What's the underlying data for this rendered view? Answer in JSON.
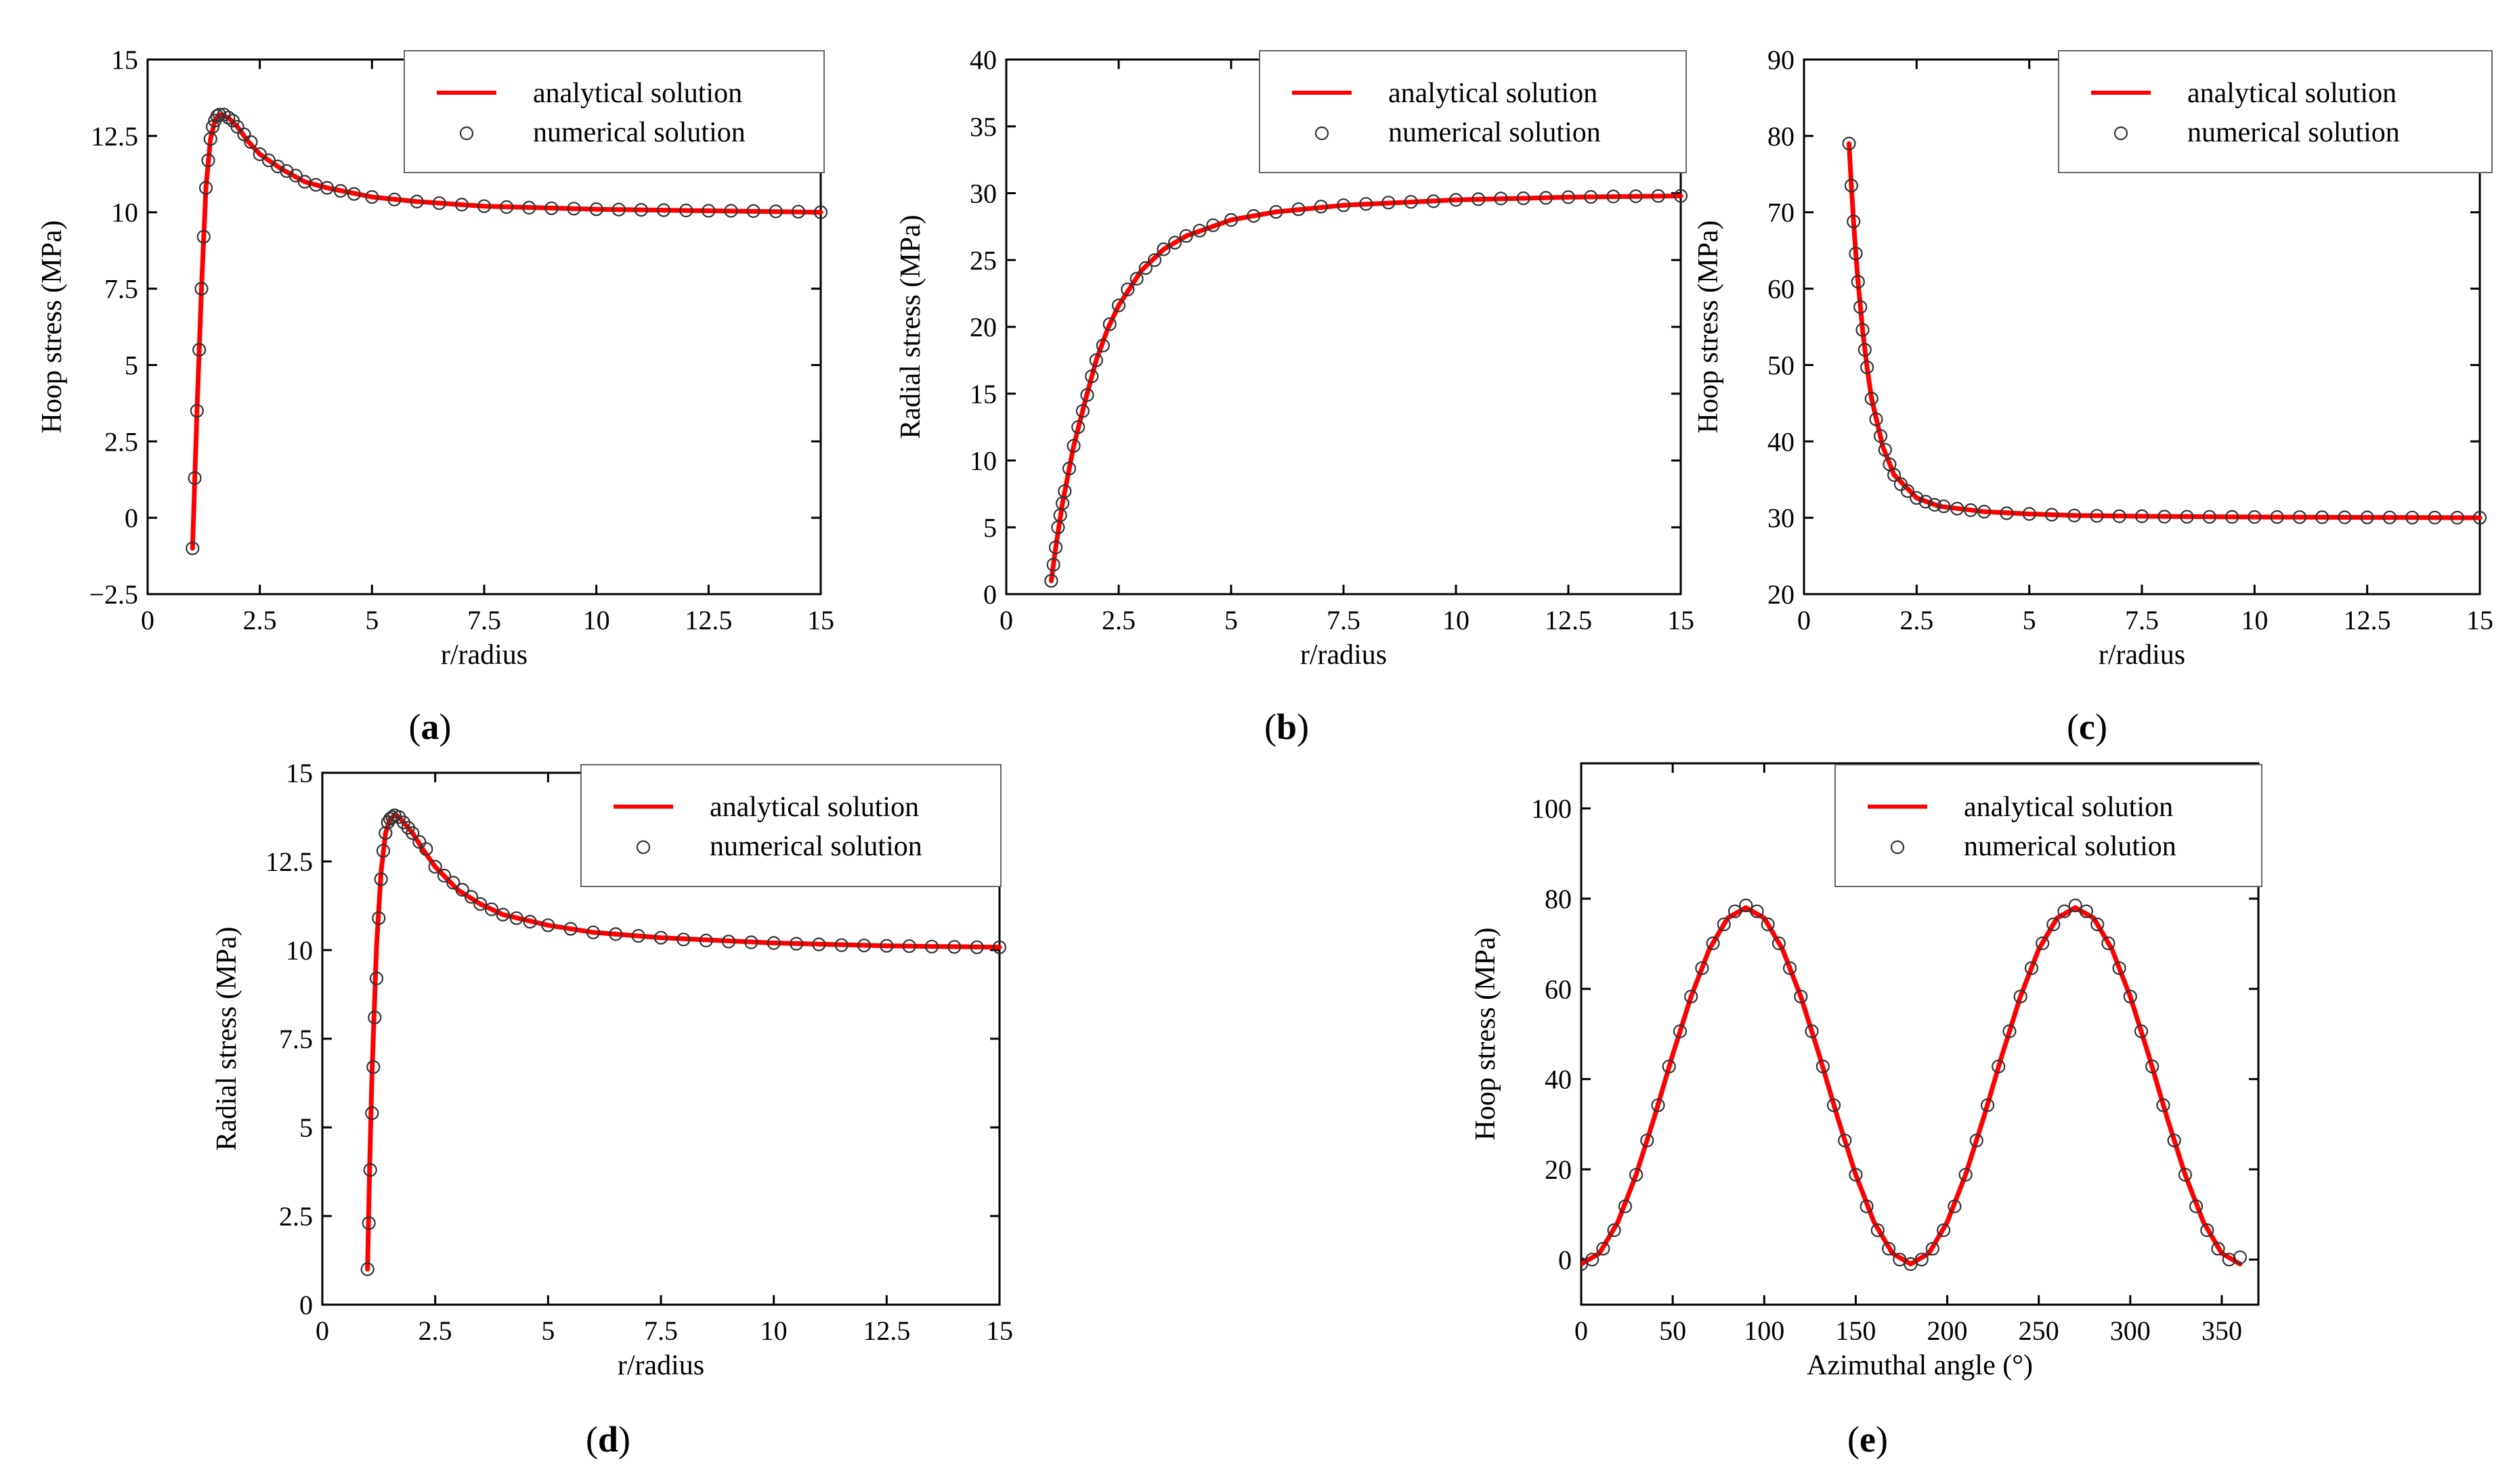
{
  "figure": {
    "panels": [
      "(a)",
      "(b)",
      "(c)",
      "(d)",
      "(e)"
    ]
  },
  "chart_data": [
    {
      "id": "a",
      "panel_label": "(a)",
      "panel_letter": "a",
      "type": "line",
      "xlabel": "r/radius",
      "ylabel": "Hoop stress (MPa)",
      "xlim": [
        0,
        15
      ],
      "ylim": [
        -2.5,
        15
      ],
      "xticks": [
        0,
        2.5,
        5,
        7.5,
        10,
        12.5,
        15
      ],
      "xtick_labels": [
        "0",
        "2.5",
        "5",
        "7.5",
        "10",
        "12.5",
        "15"
      ],
      "yticks": [
        -2.5,
        0,
        2.5,
        5,
        7.5,
        10,
        12.5,
        15
      ],
      "ytick_labels": [
        "−2.5",
        "0",
        "2.5",
        "5",
        "7.5",
        "10",
        "12.5",
        "15"
      ],
      "legend": [
        "analytical solution",
        "numerical solution"
      ],
      "legend_position": "top-right",
      "series": [
        {
          "name": "analytical solution",
          "style": "line",
          "color": "#ff0000",
          "x": [
            1,
            1.1,
            1.2,
            1.3,
            1.4,
            1.5,
            1.6,
            1.8,
            2,
            2.25,
            2.5,
            3,
            3.5,
            4,
            5,
            6,
            7.5,
            10,
            12.5,
            15
          ],
          "y": [
            -1,
            3.5,
            7.5,
            10.8,
            12.4,
            13.0,
            13.2,
            13.1,
            12.8,
            12.3,
            11.9,
            11.4,
            11.0,
            10.8,
            10.5,
            10.35,
            10.2,
            10.1,
            10.05,
            10.0
          ]
        },
        {
          "name": "numerical solution",
          "style": "markers",
          "color": "#333333",
          "x": [
            1,
            1.05,
            1.1,
            1.15,
            1.2,
            1.25,
            1.3,
            1.35,
            1.4,
            1.45,
            1.5,
            1.55,
            1.6,
            1.7,
            1.8,
            1.9,
            2,
            2.15,
            2.3,
            2.5,
            2.7,
            2.9,
            3.1,
            3.3,
            3.5,
            3.75,
            4,
            4.3,
            4.6,
            5,
            5.5,
            6,
            6.5,
            7,
            7.5,
            8,
            8.5,
            9,
            9.5,
            10,
            10.5,
            11,
            11.5,
            12,
            12.5,
            13,
            13.5,
            14,
            14.5,
            15
          ],
          "y": [
            -1,
            1.3,
            3.5,
            5.5,
            7.5,
            9.2,
            10.8,
            11.7,
            12.4,
            12.8,
            13.0,
            13.15,
            13.2,
            13.2,
            13.1,
            13.0,
            12.8,
            12.55,
            12.3,
            11.9,
            11.7,
            11.5,
            11.35,
            11.2,
            11.0,
            10.9,
            10.8,
            10.7,
            10.6,
            10.5,
            10.42,
            10.35,
            10.3,
            10.25,
            10.2,
            10.17,
            10.15,
            10.13,
            10.12,
            10.1,
            10.09,
            10.08,
            10.07,
            10.06,
            10.05,
            10.05,
            10.04,
            10.03,
            10.02,
            10.0
          ]
        }
      ]
    },
    {
      "id": "b",
      "panel_label": "(b)",
      "panel_letter": "b",
      "type": "line",
      "xlabel": "r/radius",
      "ylabel": "Radial stress (MPa)",
      "xlim": [
        0,
        15
      ],
      "ylim": [
        0,
        40
      ],
      "xticks": [
        0,
        2.5,
        5,
        7.5,
        10,
        12.5,
        15
      ],
      "xtick_labels": [
        "0",
        "2.5",
        "5",
        "7.5",
        "10",
        "12.5",
        "15"
      ],
      "yticks": [
        0,
        5,
        10,
        15,
        20,
        25,
        30,
        35,
        40
      ],
      "ytick_labels": [
        "0",
        "5",
        "10",
        "15",
        "20",
        "25",
        "30",
        "35",
        "40"
      ],
      "legend": [
        "analytical solution",
        "numerical solution"
      ],
      "legend_position": "top-right",
      "series": [
        {
          "name": "analytical solution",
          "style": "line",
          "color": "#ff0000",
          "x": [
            1,
            1.1,
            1.25,
            1.5,
            1.75,
            2,
            2.25,
            2.5,
            3,
            3.5,
            4,
            5,
            6,
            7.5,
            10,
            12.5,
            15
          ],
          "y": [
            1,
            3.5,
            6.8,
            11.1,
            14.4,
            17.5,
            19.8,
            21.6,
            24.2,
            25.8,
            26.8,
            28.0,
            28.6,
            29.1,
            29.5,
            29.7,
            29.8
          ]
        },
        {
          "name": "numerical solution",
          "style": "markers",
          "color": "#333333",
          "x": [
            1,
            1.05,
            1.1,
            1.15,
            1.2,
            1.25,
            1.3,
            1.4,
            1.5,
            1.6,
            1.7,
            1.8,
            1.9,
            2,
            2.15,
            2.3,
            2.5,
            2.7,
            2.9,
            3.1,
            3.3,
            3.5,
            3.75,
            4,
            4.3,
            4.6,
            5,
            5.5,
            6,
            6.5,
            7,
            7.5,
            8,
            8.5,
            9,
            9.5,
            10,
            10.5,
            11,
            11.5,
            12,
            12.5,
            13,
            13.5,
            14,
            14.5,
            15
          ],
          "y": [
            1,
            2.2,
            3.5,
            5.0,
            5.9,
            6.8,
            7.7,
            9.4,
            11.1,
            12.5,
            13.7,
            14.9,
            16.3,
            17.5,
            18.6,
            20.2,
            21.6,
            22.8,
            23.6,
            24.4,
            25.0,
            25.8,
            26.3,
            26.8,
            27.2,
            27.6,
            28.0,
            28.3,
            28.6,
            28.8,
            29.0,
            29.1,
            29.2,
            29.3,
            29.35,
            29.4,
            29.5,
            29.55,
            29.6,
            29.62,
            29.65,
            29.7,
            29.72,
            29.75,
            29.77,
            29.79,
            29.8
          ]
        }
      ]
    },
    {
      "id": "c",
      "panel_label": "(c)",
      "panel_letter": "c",
      "type": "line",
      "xlabel": "r/radius",
      "ylabel": "Hoop stress (MPa)",
      "xlim": [
        0,
        15
      ],
      "ylim": [
        20,
        90
      ],
      "xticks": [
        0,
        2.5,
        5,
        7.5,
        10,
        12.5,
        15
      ],
      "xtick_labels": [
        "0",
        "2.5",
        "5",
        "7.5",
        "10",
        "12.5",
        "15"
      ],
      "yticks": [
        20,
        30,
        40,
        50,
        60,
        70,
        80,
        90
      ],
      "ytick_labels": [
        "20",
        "30",
        "40",
        "50",
        "60",
        "70",
        "80",
        "90"
      ],
      "legend": [
        "analytical solution",
        "numerical solution"
      ],
      "legend_position": "top-right",
      "series": [
        {
          "name": "analytical solution",
          "style": "line",
          "color": "#ff0000",
          "x": [
            1,
            1.05,
            1.1,
            1.15,
            1.2,
            1.3,
            1.4,
            1.5,
            1.75,
            2,
            2.5,
            3,
            4,
            5,
            6,
            7.5,
            10,
            12.5,
            15
          ],
          "y": [
            79,
            73.5,
            68.8,
            64.6,
            60.9,
            54.6,
            49.7,
            45.6,
            39.3,
            35.6,
            32.6,
            31.5,
            30.8,
            30.5,
            30.3,
            30.2,
            30.1,
            30.05,
            30.0
          ]
        },
        {
          "name": "numerical solution",
          "style": "markers",
          "color": "#333333",
          "x": [
            1,
            1.05,
            1.1,
            1.15,
            1.2,
            1.25,
            1.3,
            1.35,
            1.4,
            1.5,
            1.6,
            1.7,
            1.8,
            1.9,
            2,
            2.15,
            2.3,
            2.5,
            2.7,
            2.9,
            3.1,
            3.4,
            3.7,
            4,
            4.5,
            5,
            5.5,
            6,
            6.5,
            7,
            7.5,
            8,
            8.5,
            9,
            9.5,
            10,
            10.5,
            11,
            11.5,
            12,
            12.5,
            13,
            13.5,
            14,
            14.5,
            15
          ],
          "y": [
            79,
            73.5,
            68.8,
            64.6,
            60.9,
            57.6,
            54.6,
            52.0,
            49.7,
            45.6,
            42.9,
            40.7,
            38.9,
            37.0,
            35.6,
            34.4,
            33.5,
            32.6,
            32.1,
            31.7,
            31.5,
            31.2,
            31.0,
            30.8,
            30.6,
            30.5,
            30.4,
            30.3,
            30.25,
            30.2,
            30.2,
            30.15,
            30.13,
            30.12,
            30.11,
            30.1,
            30.09,
            30.08,
            30.07,
            30.06,
            30.05,
            30.04,
            30.03,
            30.02,
            30.01,
            30.0
          ]
        }
      ]
    },
    {
      "id": "d",
      "panel_label": "(d)",
      "panel_letter": "d",
      "type": "line",
      "xlabel": "r/radius",
      "ylabel": "Radial stress (MPa)",
      "xlim": [
        0,
        15
      ],
      "ylim": [
        0,
        15
      ],
      "xticks": [
        0,
        2.5,
        5,
        7.5,
        10,
        12.5,
        15
      ],
      "xtick_labels": [
        "0",
        "2.5",
        "5",
        "7.5",
        "10",
        "12.5",
        "15"
      ],
      "yticks": [
        0,
        2.5,
        5,
        7.5,
        10,
        12.5,
        15
      ],
      "ytick_labels": [
        "0",
        "2.5",
        "5",
        "7.5",
        "10",
        "12.5",
        "15"
      ],
      "legend": [
        "analytical solution",
        "numerical solution"
      ],
      "legend_position": "top-right",
      "series": [
        {
          "name": "analytical solution",
          "style": "line",
          "color": "#ff0000",
          "x": [
            1,
            1.05,
            1.1,
            1.2,
            1.3,
            1.4,
            1.5,
            1.6,
            1.7,
            1.8,
            2,
            2.25,
            2.5,
            3,
            3.5,
            4,
            5,
            6,
            7.5,
            10,
            12.5,
            15
          ],
          "y": [
            1,
            4.0,
            6.5,
            10.1,
            12.2,
            13.3,
            13.7,
            13.8,
            13.75,
            13.6,
            13.3,
            12.8,
            12.35,
            11.7,
            11.3,
            11.0,
            10.7,
            10.5,
            10.35,
            10.2,
            10.12,
            10.08
          ]
        },
        {
          "name": "numerical solution",
          "style": "markers",
          "color": "#333333",
          "x": [
            1,
            1.03,
            1.06,
            1.1,
            1.13,
            1.16,
            1.2,
            1.25,
            1.3,
            1.35,
            1.4,
            1.45,
            1.5,
            1.55,
            1.6,
            1.7,
            1.8,
            1.9,
            2,
            2.15,
            2.3,
            2.5,
            2.7,
            2.9,
            3.1,
            3.3,
            3.5,
            3.75,
            4,
            4.3,
            4.6,
            5,
            5.5,
            6,
            6.5,
            7,
            7.5,
            8,
            8.5,
            9,
            9.5,
            10,
            10.5,
            11,
            11.5,
            12,
            12.5,
            13,
            13.5,
            14,
            14.5,
            15
          ],
          "y": [
            1,
            2.3,
            3.8,
            5.4,
            6.7,
            8.1,
            9.2,
            10.9,
            12.0,
            12.8,
            13.3,
            13.6,
            13.7,
            13.75,
            13.8,
            13.75,
            13.6,
            13.45,
            13.3,
            13.05,
            12.85,
            12.35,
            12.1,
            11.9,
            11.7,
            11.5,
            11.3,
            11.15,
            11.0,
            10.9,
            10.8,
            10.7,
            10.6,
            10.5,
            10.45,
            10.4,
            10.35,
            10.3,
            10.27,
            10.24,
            10.22,
            10.2,
            10.18,
            10.16,
            10.14,
            10.13,
            10.12,
            10.11,
            10.1,
            10.09,
            10.08,
            10.08
          ]
        }
      ]
    },
    {
      "id": "e",
      "panel_label": "(e)",
      "panel_letter": "e",
      "type": "line",
      "xlabel": "Azimuthal angle (°)",
      "ylabel": "Hoop stress (MPa)",
      "xlim": [
        0,
        370
      ],
      "ylim": [
        -10,
        110
      ],
      "xticks": [
        0,
        50,
        100,
        150,
        200,
        250,
        300,
        350
      ],
      "xtick_labels": [
        "0",
        "50",
        "100",
        "150",
        "200",
        "250",
        "300",
        "350"
      ],
      "yticks": [
        0,
        20,
        40,
        60,
        80,
        100
      ],
      "ytick_labels": [
        "0",
        "20",
        "40",
        "60",
        "80",
        "100"
      ],
      "legend": [
        "analytical solution",
        "numerical solution"
      ],
      "legend_position": "top-right",
      "series": [
        {
          "name": "analytical solution",
          "style": "line",
          "color": "#ff0000",
          "x": [
            0,
            10,
            20,
            30,
            40,
            50,
            60,
            70,
            80,
            90,
            100,
            110,
            120,
            130,
            140,
            150,
            160,
            170,
            180,
            190,
            200,
            210,
            220,
            230,
            240,
            250,
            260,
            270,
            280,
            290,
            300,
            310,
            320,
            330,
            340,
            350,
            360
          ],
          "y": [
            -1,
            1.4,
            8.3,
            18.8,
            31.6,
            45.4,
            58.3,
            68.8,
            75.7,
            78,
            75.7,
            68.8,
            58.3,
            45.4,
            31.6,
            18.8,
            8.3,
            1.4,
            -1,
            1.4,
            8.3,
            18.8,
            31.6,
            45.4,
            58.3,
            68.8,
            75.7,
            78,
            75.7,
            68.8,
            58.3,
            45.4,
            31.6,
            18.8,
            8.3,
            1.4,
            -1
          ]
        },
        {
          "name": "numerical solution",
          "style": "markers",
          "color": "#333333",
          "x": [
            0,
            6,
            12,
            18,
            24,
            30,
            36,
            42,
            48,
            54,
            60,
            66,
            72,
            78,
            84,
            90,
            96,
            102,
            108,
            114,
            120,
            126,
            132,
            138,
            144,
            150,
            156,
            162,
            168,
            174,
            180,
            186,
            192,
            198,
            204,
            210,
            216,
            222,
            228,
            234,
            240,
            246,
            252,
            258,
            264,
            270,
            276,
            282,
            288,
            294,
            300,
            306,
            312,
            318,
            324,
            330,
            336,
            342,
            348,
            354,
            360
          ],
          "y": [
            -1,
            0,
            2.4,
            6.5,
            11.8,
            18.8,
            26.4,
            34.2,
            42.8,
            50.6,
            58.3,
            64.6,
            70.1,
            74.3,
            77.2,
            78.5,
            77.2,
            74.3,
            70.1,
            64.6,
            58.3,
            50.6,
            42.8,
            34.2,
            26.4,
            18.8,
            11.8,
            6.5,
            2.4,
            0,
            -1,
            0,
            2.4,
            6.5,
            11.8,
            18.8,
            26.4,
            34.2,
            42.8,
            50.6,
            58.3,
            64.6,
            70.1,
            74.3,
            77.2,
            78.5,
            77.2,
            74.3,
            70.1,
            64.6,
            58.3,
            50.6,
            42.8,
            34.2,
            26.4,
            18.8,
            11.8,
            6.5,
            2.4,
            0,
            0.5
          ]
        }
      ]
    }
  ]
}
